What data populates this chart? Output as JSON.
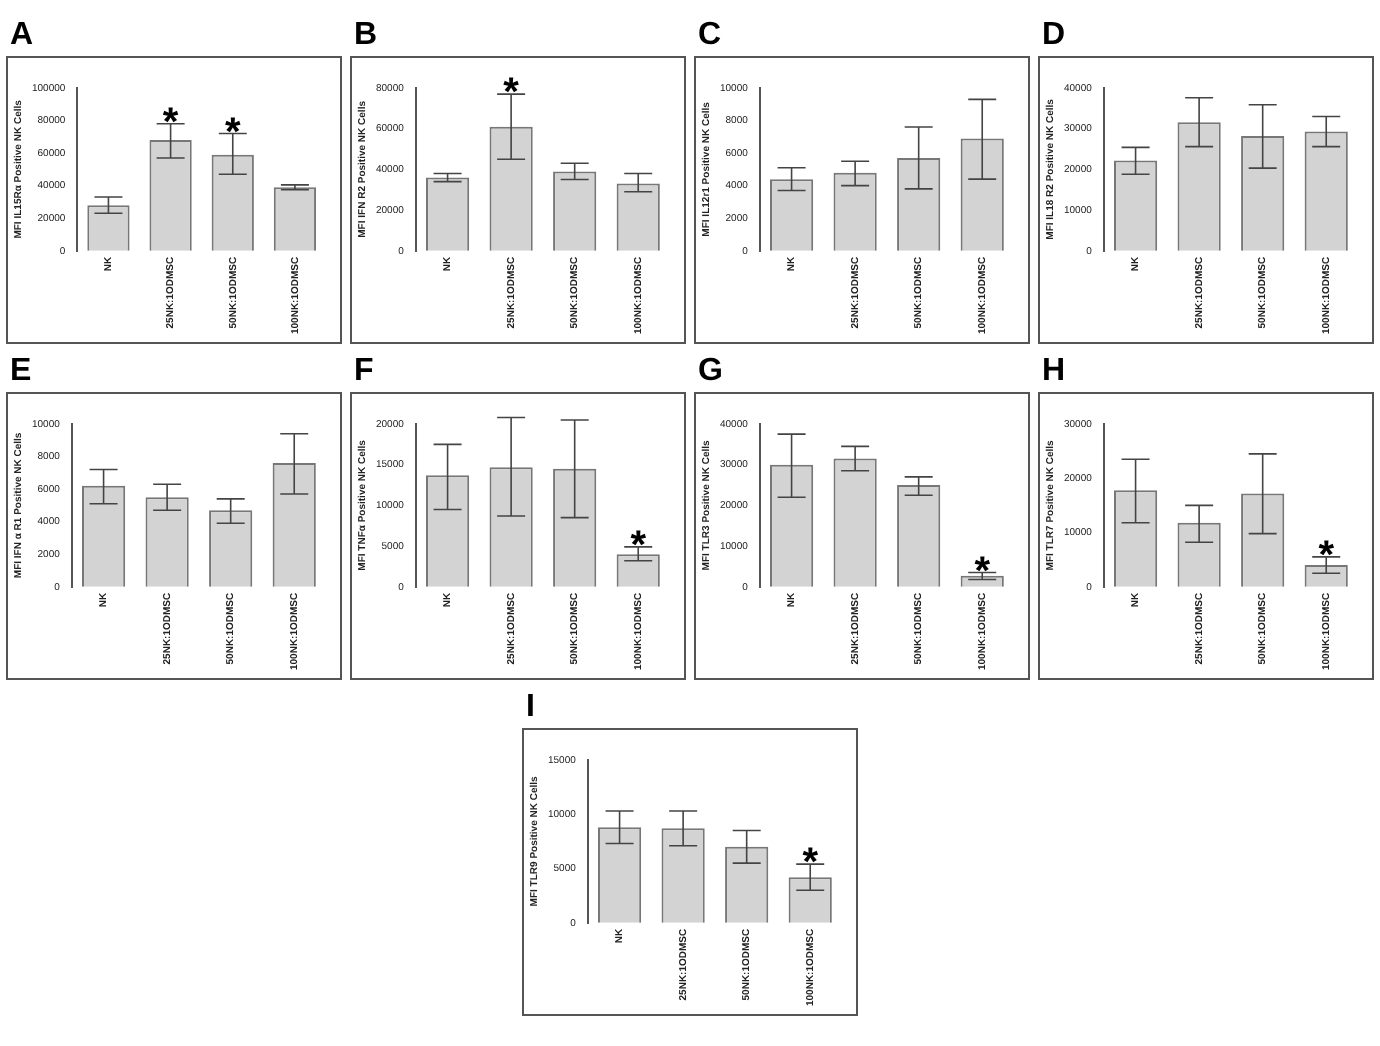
{
  "chart_data": [
    {
      "type": "bar",
      "title": "A",
      "ylabel": "MFI IL15Rα Positive NK Cells",
      "categories": [
        "NK",
        "25NK:1ODMSC",
        "50NK:1ODMSC",
        "100NK:1ODMSC"
      ],
      "values": [
        28000,
        68000,
        59000,
        39000
      ],
      "errors": [
        [
          23000,
          33000
        ],
        [
          57000,
          78000
        ],
        [
          47000,
          72000
        ],
        [
          37500,
          40500
        ]
      ],
      "color": "#d3d3d3",
      "ylim": [
        0,
        100000
      ],
      "yticks": [
        0,
        20000,
        40000,
        60000,
        80000,
        100000
      ],
      "annotations": [
        {
          "text": "*",
          "x": "25NK:1ODMSC",
          "y": 78000
        },
        {
          "text": "*",
          "x": "50NK:1ODMSC",
          "y": 72000
        }
      ]
    },
    {
      "type": "bar",
      "title": "B",
      "ylabel": "MFI IFN R2 Positive NK Cells",
      "categories": [
        "NK",
        "25NK:1ODMSC",
        "50NK:1ODMSC",
        "100NK:1ODMSC"
      ],
      "values": [
        36000,
        61000,
        39000,
        33000
      ],
      "errors": [
        [
          34000,
          38000
        ],
        [
          45000,
          77000
        ],
        [
          35000,
          43000
        ],
        [
          29000,
          38000
        ]
      ],
      "color": "#d3d3d3",
      "ylim": [
        0,
        80000
      ],
      "yticks": [
        0,
        20000,
        40000,
        60000,
        80000
      ],
      "annotations": [
        {
          "text": "*",
          "x": "25NK:1ODMSC",
          "y": 77000
        }
      ]
    },
    {
      "type": "bar",
      "title": "C",
      "ylabel": "MFI IL12r1 Positive NK Cells",
      "categories": [
        "NK",
        "25NK:1ODMSC",
        "50NK:1ODMSC",
        "100NK:1ODMSC"
      ],
      "values": [
        4400,
        4800,
        5700,
        6900
      ],
      "errors": [
        [
          3700,
          5100
        ],
        [
          4000,
          5500
        ],
        [
          3800,
          7600
        ],
        [
          4400,
          9300
        ]
      ],
      "color": "#d3d3d3",
      "ylim": [
        0,
        10000
      ],
      "yticks": [
        0,
        2000,
        4000,
        6000,
        8000,
        10000
      ]
    },
    {
      "type": "bar",
      "title": "D",
      "ylabel": "MFI IL18 R2 Positive NK Cells",
      "categories": [
        "NK",
        "25NK:1ODMSC",
        "50NK:1ODMSC",
        "100NK:1ODMSC"
      ],
      "values": [
        22200,
        31600,
        28200,
        29300
      ],
      "errors": [
        [
          18800,
          25400
        ],
        [
          25600,
          37600
        ],
        [
          20300,
          35900
        ],
        [
          25600,
          33000
        ]
      ],
      "color": "#d3d3d3",
      "ylim": [
        0,
        40000
      ],
      "yticks": [
        0,
        10000,
        20000,
        30000,
        40000
      ]
    },
    {
      "type": "bar",
      "title": "E",
      "ylabel": "MFI IFN α R1 Positive NK Cells",
      "categories": [
        "NK",
        "25NK:1ODMSC",
        "50NK:1ODMSC",
        "100NK:1ODMSC"
      ],
      "values": [
        6200,
        5500,
        4700,
        7600
      ],
      "errors": [
        [
          5100,
          7200
        ],
        [
          4700,
          6300
        ],
        [
          3900,
          5400
        ],
        [
          5700,
          9400
        ]
      ],
      "color": "#d3d3d3",
      "ylim": [
        0,
        10000
      ],
      "yticks": [
        0,
        2000,
        4000,
        6000,
        8000,
        10000
      ]
    },
    {
      "type": "bar",
      "title": "F",
      "ylabel": "MFI TNFα Positive NK Cells",
      "categories": [
        "NK",
        "25NK:1ODMSC",
        "50NK:1ODMSC",
        "100NK:1ODMSC"
      ],
      "values": [
        13700,
        14700,
        14500,
        4000
      ],
      "errors": [
        [
          9500,
          17500
        ],
        [
          8700,
          20800
        ],
        [
          8500,
          20500
        ],
        [
          3200,
          4900
        ]
      ],
      "color": "#d3d3d3",
      "ylim": [
        0,
        20000
      ],
      "yticks": [
        0,
        5000,
        10000,
        15000,
        20000
      ],
      "annotations": [
        {
          "text": "*",
          "x": "100NK:1ODMSC",
          "y": 4900
        }
      ]
    },
    {
      "type": "bar",
      "title": "G",
      "ylabel": "MFI TLR3 Positive NK Cells",
      "categories": [
        "NK",
        "25NK:1ODMSC",
        "50NK:1ODMSC",
        "100NK:1ODMSC"
      ],
      "values": [
        30000,
        31500,
        25000,
        2700
      ],
      "errors": [
        [
          22000,
          37500
        ],
        [
          28500,
          34500
        ],
        [
          22500,
          27000
        ],
        [
          1800,
          3500
        ]
      ],
      "color": "#d3d3d3",
      "ylim": [
        0,
        40000
      ],
      "yticks": [
        0,
        10000,
        20000,
        30000,
        40000
      ],
      "annotations": [
        {
          "text": "*",
          "x": "100NK:1ODMSC",
          "y": 3500
        }
      ]
    },
    {
      "type": "bar",
      "title": "H",
      "ylabel": "MFI TLR7 Positive NK Cells",
      "categories": [
        "NK",
        "25NK:1ODMSC",
        "50NK:1ODMSC",
        "100NK:1ODMSC"
      ],
      "values": [
        17800,
        11800,
        17200,
        4000
      ],
      "errors": [
        [
          11800,
          23500
        ],
        [
          8200,
          15000
        ],
        [
          9800,
          24500
        ],
        [
          2500,
          5500
        ]
      ],
      "color": "#d3d3d3",
      "ylim": [
        0,
        30000
      ],
      "yticks": [
        0,
        10000,
        20000,
        30000
      ],
      "annotations": [
        {
          "text": "*",
          "x": "100NK:1ODMSC",
          "y": 5500
        }
      ]
    },
    {
      "type": "bar",
      "title": "I",
      "ylabel": "MFI TLR9 Positive NK Cells",
      "categories": [
        "NK",
        "25NK:1ODMSC",
        "50NK:1ODMSC",
        "100NK:1ODMSC"
      ],
      "values": [
        8800,
        8700,
        7000,
        4200
      ],
      "errors": [
        [
          7300,
          10300
        ],
        [
          7100,
          10300
        ],
        [
          5500,
          8500
        ],
        [
          3000,
          5400
        ]
      ],
      "color": "#d3d3d3",
      "ylim": [
        0,
        15000
      ],
      "yticks": [
        0,
        5000,
        10000,
        15000
      ],
      "annotations": [
        {
          "text": "*",
          "x": "100NK:1ODMSC",
          "y": 5400
        }
      ]
    }
  ]
}
